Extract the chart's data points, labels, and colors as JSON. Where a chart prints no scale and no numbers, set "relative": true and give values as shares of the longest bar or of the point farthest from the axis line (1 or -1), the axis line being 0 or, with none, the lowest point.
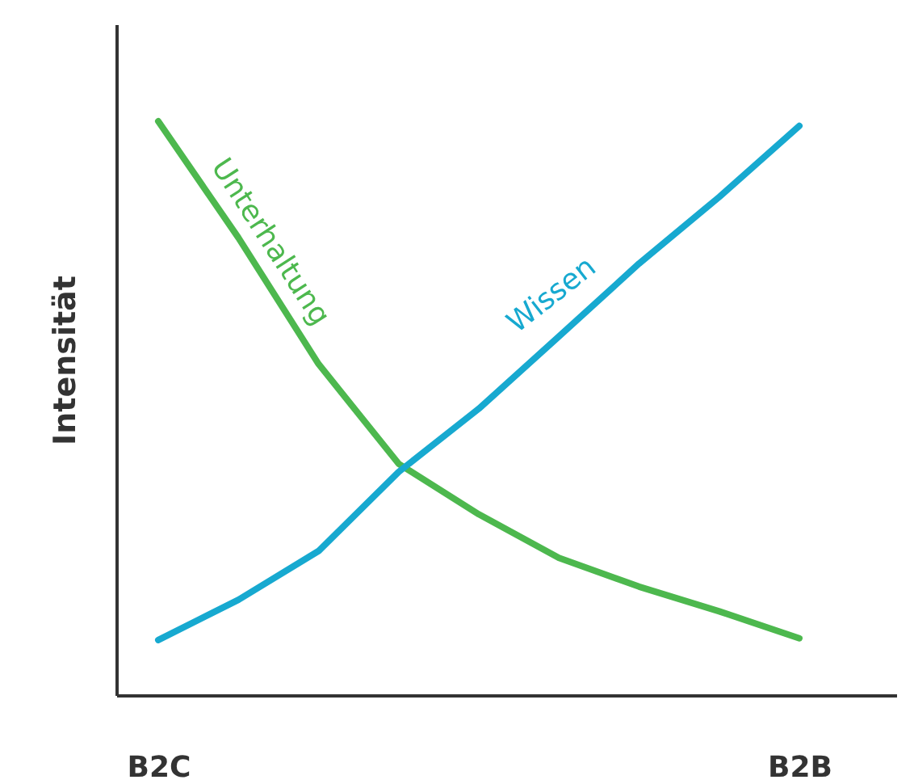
{
  "chart_data": {
    "type": "line",
    "relative": true,
    "ylabel": "Intensität",
    "categories": [
      "B2C",
      null,
      null,
      null,
      null,
      null,
      null,
      null,
      "B2B"
    ],
    "grid": false,
    "marker": "none",
    "line_style": "solid",
    "series": [
      {
        "name": "Unterhaltung",
        "color": "#4db84e",
        "values": [
          1,
          0.797,
          0.577,
          0.403,
          0.315,
          0.239,
          0.189,
          0.146,
          0.099
        ]
      },
      {
        "name": "Wissen",
        "color": "#17a9d0",
        "values": [
          0.096,
          0.166,
          0.251,
          0.389,
          0.499,
          0.625,
          0.752,
          0.868,
          0.992
        ]
      }
    ]
  }
}
